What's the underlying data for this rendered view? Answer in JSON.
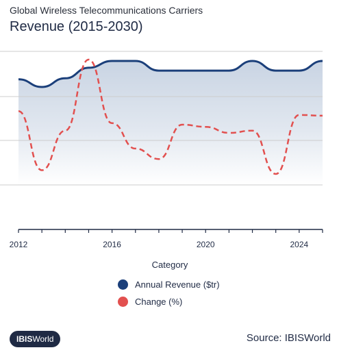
{
  "header": {
    "subtitle": "Global Wireless Telecommunications Carriers",
    "title": "Revenue (2015-2030)"
  },
  "chart_data": {
    "type": "line",
    "xlabel": "Category",
    "ylabel": "",
    "x_ticks": [
      2012,
      2016,
      2020,
      2024
    ],
    "xlim": [
      2012,
      2025
    ],
    "grid": true,
    "legend_position": "bottom",
    "series": [
      {
        "name": "Annual Revenue ($tr)",
        "color": "#1b3f7a",
        "style": "solid",
        "x": [
          2012,
          2013,
          2014,
          2015,
          2016,
          2017,
          2018,
          2019,
          2020,
          2021,
          2022,
          2023,
          2024,
          2025
        ],
        "values": [
          88,
          80,
          89,
          100,
          107,
          107,
          97,
          97,
          97,
          97,
          107,
          97,
          97,
          107
        ]
      },
      {
        "name": "Change (%)",
        "color": "#e2504f",
        "style": "dashed",
        "x": [
          2012,
          2013,
          2014,
          2015,
          2016,
          2017,
          2018,
          2019,
          2020,
          2021,
          2022,
          2023,
          2024,
          2025
        ],
        "values": [
          41,
          -38,
          15,
          110,
          25,
          -9,
          -23,
          23,
          20,
          12,
          15,
          -43,
          36,
          35
        ]
      }
    ]
  },
  "footer": {
    "brand_bold": "IBIS",
    "brand_regular": "World",
    "source": "Source: IBISWorld"
  },
  "colors": {
    "axis": "#1f2a44",
    "grid": "#cccccc",
    "area_top": "#c9d4e3"
  }
}
